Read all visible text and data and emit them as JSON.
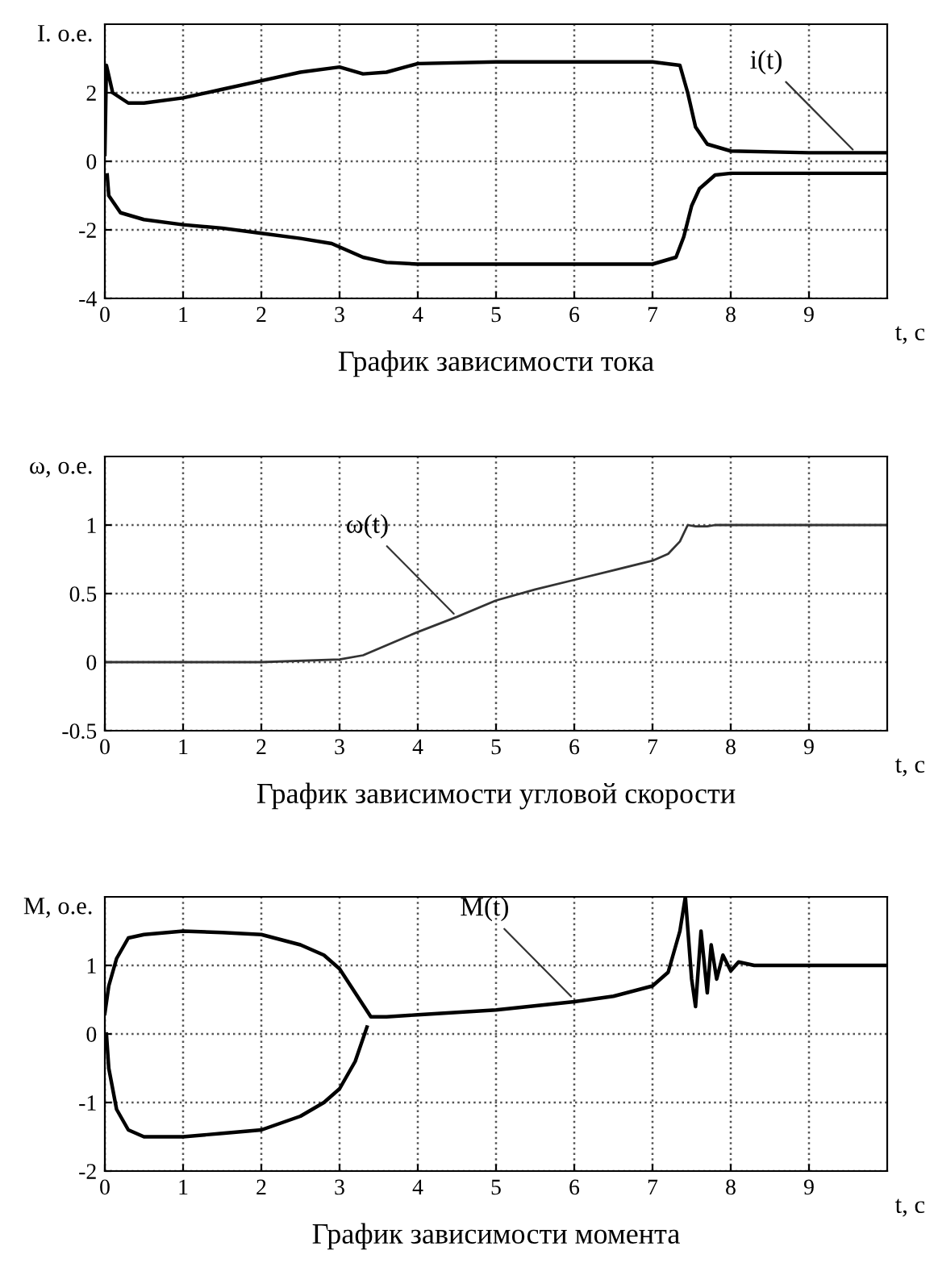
{
  "chart_data": [
    {
      "type": "line",
      "title": "График зависимости тока",
      "xlabel": "t, c",
      "ylabel": "I. o.e.",
      "xlim": [
        0,
        10
      ],
      "ylim": [
        -4,
        4
      ],
      "xticks": [
        0,
        1,
        2,
        3,
        4,
        5,
        6,
        7,
        8,
        9
      ],
      "yticks": [
        -4,
        -2,
        0,
        2
      ],
      "grid": true,
      "legend": false,
      "marker": "none",
      "line_style": "solid",
      "series": [
        {
          "color": "#000000",
          "x": [
            0,
            0.02,
            0.1,
            0.3,
            0.5,
            1,
            1.5,
            2,
            2.5,
            3,
            3.3,
            3.6,
            4,
            5,
            6,
            7,
            7.35,
            7.45,
            7.55,
            7.7,
            8,
            9,
            10
          ],
          "values": [
            0.2,
            2.8,
            2.0,
            1.7,
            1.7,
            1.85,
            2.1,
            2.35,
            2.6,
            2.75,
            2.55,
            2.6,
            2.85,
            2.9,
            2.9,
            2.9,
            2.8,
            2.0,
            1.0,
            0.5,
            0.3,
            0.25,
            0.25
          ]
        },
        {
          "color": "#000000",
          "x": [
            0.03,
            0.05,
            0.2,
            0.5,
            1,
            1.5,
            2,
            2.5,
            2.9,
            3.3,
            3.6,
            4,
            5,
            6,
            7,
            7.3,
            7.4,
            7.5,
            7.6,
            7.8,
            8,
            9,
            10
          ],
          "values": [
            -0.4,
            -1.0,
            -1.5,
            -1.7,
            -1.85,
            -1.95,
            -2.1,
            -2.25,
            -2.4,
            -2.8,
            -2.95,
            -3.0,
            -3.0,
            -3.0,
            -3.0,
            -2.8,
            -2.2,
            -1.3,
            -0.8,
            -0.4,
            -0.35,
            -0.35,
            -0.35
          ]
        }
      ],
      "annotations": [
        {
          "text": "i(t)",
          "x": 9.6,
          "y": 0.25
        }
      ]
    },
    {
      "type": "line",
      "title": "График зависимости угловой скорости",
      "xlabel": "t, c",
      "ylabel": "ω, o.e.",
      "xlim": [
        0,
        10
      ],
      "ylim": [
        -0.5,
        1.5
      ],
      "xticks": [
        0,
        1,
        2,
        3,
        4,
        5,
        6,
        7,
        8,
        9
      ],
      "yticks": [
        -0.5,
        0,
        0.5,
        1
      ],
      "grid": true,
      "legend": false,
      "marker": "none",
      "line_style": "solid",
      "series": [
        {
          "color": "#333333",
          "x": [
            0,
            2,
            3,
            3.3,
            4,
            4.5,
            5,
            5.5,
            6,
            6.5,
            7,
            7.2,
            7.35,
            7.45,
            7.55,
            7.7,
            7.8,
            10
          ],
          "values": [
            0,
            0,
            0.02,
            0.05,
            0.22,
            0.33,
            0.45,
            0.53,
            0.6,
            0.67,
            0.74,
            0.79,
            0.88,
            1.0,
            0.99,
            0.99,
            1.0,
            1.0
          ]
        }
      ],
      "annotations": [
        {
          "text": "ω(t)",
          "x": 4.5,
          "y": 0.33
        }
      ]
    },
    {
      "type": "line",
      "title": "График зависимости момента",
      "xlabel": "t, c",
      "ylabel": "M, o.e.",
      "xlim": [
        0,
        10
      ],
      "ylim": [
        -2,
        2
      ],
      "xticks": [
        0,
        1,
        2,
        3,
        4,
        5,
        6,
        7,
        8,
        9
      ],
      "yticks": [
        -2,
        -1,
        0,
        1
      ],
      "grid": true,
      "legend": false,
      "marker": "none",
      "line_style": "solid",
      "series": [
        {
          "color": "#000000",
          "x": [
            0,
            0.05,
            0.15,
            0.3,
            0.5,
            1,
            1.5,
            2,
            2.5,
            2.8,
            3,
            3.2,
            3.4,
            3.6,
            4,
            5,
            6,
            6.5,
            7,
            7.2,
            7.35,
            7.42,
            7.5,
            7.55,
            7.62,
            7.7,
            7.75,
            7.82,
            7.9,
            8.0,
            8.1,
            8.3,
            10
          ],
          "values": [
            0.3,
            0.7,
            1.1,
            1.4,
            1.45,
            1.5,
            1.48,
            1.45,
            1.3,
            1.15,
            0.95,
            0.6,
            0.25,
            0.25,
            0.28,
            0.35,
            0.47,
            0.55,
            0.7,
            0.9,
            1.5,
            2.0,
            0.8,
            0.4,
            1.5,
            0.6,
            1.3,
            0.8,
            1.15,
            0.92,
            1.05,
            1.0,
            1.0
          ]
        },
        {
          "color": "#000000",
          "x": [
            0.02,
            0.05,
            0.15,
            0.3,
            0.5,
            1,
            1.5,
            2,
            2.5,
            2.8,
            3,
            3.2,
            3.35
          ],
          "values": [
            0.0,
            -0.5,
            -1.1,
            -1.4,
            -1.5,
            -1.5,
            -1.45,
            -1.4,
            -1.2,
            -1.0,
            -0.8,
            -0.4,
            0.1
          ]
        }
      ],
      "annotations": [
        {
          "text": "M(t)",
          "x": 6.0,
          "y": 0.5
        }
      ]
    }
  ]
}
